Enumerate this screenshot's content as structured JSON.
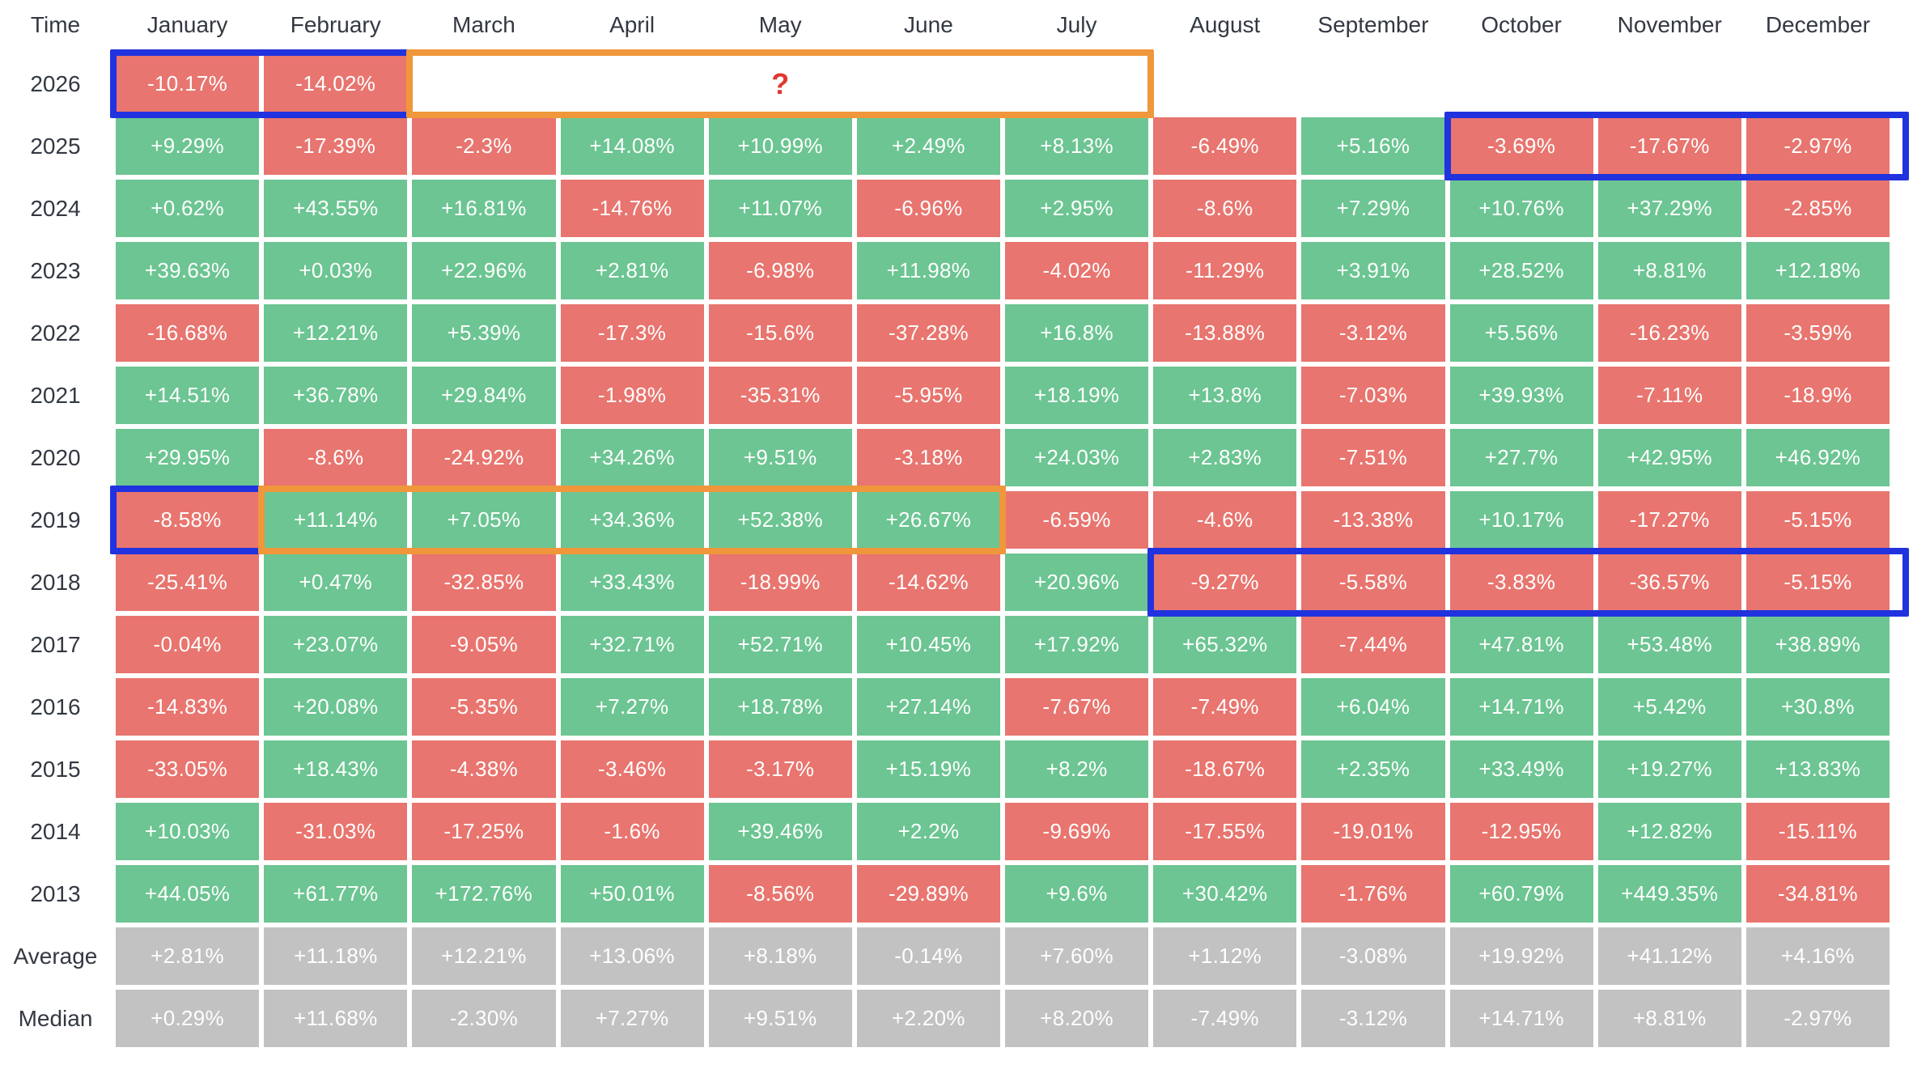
{
  "chart_data": {
    "type": "heatmap",
    "corner_label": "Time",
    "columns": [
      "January",
      "February",
      "March",
      "April",
      "May",
      "June",
      "July",
      "August",
      "September",
      "October",
      "November",
      "December"
    ],
    "rows": [
      {
        "label": "2026",
        "summary": false,
        "values": [
          "-10.17%",
          "-14.02%",
          null,
          null,
          null,
          null,
          null,
          null,
          null,
          null,
          null,
          null
        ]
      },
      {
        "label": "2025",
        "summary": false,
        "values": [
          "+9.29%",
          "-17.39%",
          "-2.3%",
          "+14.08%",
          "+10.99%",
          "+2.49%",
          "+8.13%",
          "-6.49%",
          "+5.16%",
          "-3.69%",
          "-17.67%",
          "-2.97%"
        ]
      },
      {
        "label": "2024",
        "summary": false,
        "values": [
          "+0.62%",
          "+43.55%",
          "+16.81%",
          "-14.76%",
          "+11.07%",
          "-6.96%",
          "+2.95%",
          "-8.6%",
          "+7.29%",
          "+10.76%",
          "+37.29%",
          "-2.85%"
        ]
      },
      {
        "label": "2023",
        "summary": false,
        "values": [
          "+39.63%",
          "+0.03%",
          "+22.96%",
          "+2.81%",
          "-6.98%",
          "+11.98%",
          "-4.02%",
          "-11.29%",
          "+3.91%",
          "+28.52%",
          "+8.81%",
          "+12.18%"
        ]
      },
      {
        "label": "2022",
        "summary": false,
        "values": [
          "-16.68%",
          "+12.21%",
          "+5.39%",
          "-17.3%",
          "-15.6%",
          "-37.28%",
          "+16.8%",
          "-13.88%",
          "-3.12%",
          "+5.56%",
          "-16.23%",
          "-3.59%"
        ]
      },
      {
        "label": "2021",
        "summary": false,
        "values": [
          "+14.51%",
          "+36.78%",
          "+29.84%",
          "-1.98%",
          "-35.31%",
          "-5.95%",
          "+18.19%",
          "+13.8%",
          "-7.03%",
          "+39.93%",
          "-7.11%",
          "-18.9%"
        ]
      },
      {
        "label": "2020",
        "summary": false,
        "values": [
          "+29.95%",
          "-8.6%",
          "-24.92%",
          "+34.26%",
          "+9.51%",
          "-3.18%",
          "+24.03%",
          "+2.83%",
          "-7.51%",
          "+27.7%",
          "+42.95%",
          "+46.92%"
        ]
      },
      {
        "label": "2019",
        "summary": false,
        "values": [
          "-8.58%",
          "+11.14%",
          "+7.05%",
          "+34.36%",
          "+52.38%",
          "+26.67%",
          "-6.59%",
          "-4.6%",
          "-13.38%",
          "+10.17%",
          "-17.27%",
          "-5.15%"
        ]
      },
      {
        "label": "2018",
        "summary": false,
        "values": [
          "-25.41%",
          "+0.47%",
          "-32.85%",
          "+33.43%",
          "-18.99%",
          "-14.62%",
          "+20.96%",
          "-9.27%",
          "-5.58%",
          "-3.83%",
          "-36.57%",
          "-5.15%"
        ]
      },
      {
        "label": "2017",
        "summary": false,
        "values": [
          "-0.04%",
          "+23.07%",
          "-9.05%",
          "+32.71%",
          "+52.71%",
          "+10.45%",
          "+17.92%",
          "+65.32%",
          "-7.44%",
          "+47.81%",
          "+53.48%",
          "+38.89%"
        ]
      },
      {
        "label": "2016",
        "summary": false,
        "values": [
          "-14.83%",
          "+20.08%",
          "-5.35%",
          "+7.27%",
          "+18.78%",
          "+27.14%",
          "-7.67%",
          "-7.49%",
          "+6.04%",
          "+14.71%",
          "+5.42%",
          "+30.8%"
        ]
      },
      {
        "label": "2015",
        "summary": false,
        "values": [
          "-33.05%",
          "+18.43%",
          "-4.38%",
          "-3.46%",
          "-3.17%",
          "+15.19%",
          "+8.2%",
          "-18.67%",
          "+2.35%",
          "+33.49%",
          "+19.27%",
          "+13.83%"
        ]
      },
      {
        "label": "2014",
        "summary": false,
        "values": [
          "+10.03%",
          "-31.03%",
          "-17.25%",
          "-1.6%",
          "+39.46%",
          "+2.2%",
          "-9.69%",
          "-17.55%",
          "-19.01%",
          "-12.95%",
          "+12.82%",
          "-15.11%"
        ]
      },
      {
        "label": "2013",
        "summary": false,
        "values": [
          "+44.05%",
          "+61.77%",
          "+172.76%",
          "+50.01%",
          "-8.56%",
          "-29.89%",
          "+9.6%",
          "+30.42%",
          "-1.76%",
          "+60.79%",
          "+449.35%",
          "-34.81%"
        ]
      },
      {
        "label": "Average",
        "summary": true,
        "values": [
          "+2.81%",
          "+11.18%",
          "+12.21%",
          "+13.06%",
          "+8.18%",
          "-0.14%",
          "+7.60%",
          "+1.12%",
          "-3.08%",
          "+19.92%",
          "+41.12%",
          "+4.16%"
        ]
      },
      {
        "label": "Median",
        "summary": true,
        "values": [
          "+0.29%",
          "+11.68%",
          "-2.30%",
          "+7.27%",
          "+9.51%",
          "+2.20%",
          "+8.20%",
          "-7.49%",
          "-3.12%",
          "+14.71%",
          "+8.81%",
          "-2.97%"
        ]
      }
    ],
    "missing_value_marker": "?",
    "highlights": [
      {
        "row": "2026",
        "from": "January",
        "to": "February",
        "color": "blue"
      },
      {
        "row": "2026",
        "from": "March",
        "to": "July",
        "color": "orange",
        "marker": "?"
      },
      {
        "row": "2025",
        "from": "October",
        "to": "December",
        "color": "blue"
      },
      {
        "row": "2019",
        "from": "January",
        "to": "January",
        "color": "blue"
      },
      {
        "row": "2019",
        "from": "February",
        "to": "June",
        "color": "orange"
      },
      {
        "row": "2018",
        "from": "August",
        "to": "December",
        "color": "blue"
      }
    ],
    "colors": {
      "positive": "#6CC592",
      "negative": "#E8756F",
      "summary": "#C2C2C2",
      "highlight_blue": "#2132DF",
      "highlight_orange": "#F0973B",
      "marker_red": "#E0372E",
      "label_text": "#333842",
      "cell_text": "#FFFFFF"
    }
  }
}
